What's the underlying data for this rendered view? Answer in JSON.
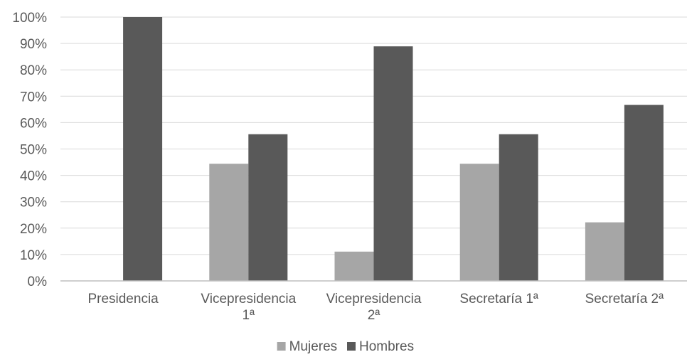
{
  "chart_data": {
    "type": "bar",
    "categories": [
      [
        "Presidencia"
      ],
      [
        "Vicepresidencia",
        "1ª"
      ],
      [
        "Vicepresidencia",
        "2ª"
      ],
      [
        "Secretaría 1ª"
      ],
      [
        "Secretaría 2ª"
      ]
    ],
    "series": [
      {
        "name": "Mujeres",
        "color": "#a6a6a6",
        "values": [
          0,
          44.4,
          11.1,
          44.4,
          22.2
        ]
      },
      {
        "name": "Hombres",
        "color": "#595959",
        "values": [
          100,
          55.6,
          88.9,
          55.6,
          66.7
        ]
      }
    ],
    "ylim": [
      0,
      100
    ],
    "yticks": [
      0,
      10,
      20,
      30,
      40,
      50,
      60,
      70,
      80,
      90,
      100
    ],
    "ytick_suffix": "%",
    "grid": true,
    "legend_position": "bottom",
    "title": "",
    "xlabel": "",
    "ylabel": ""
  }
}
